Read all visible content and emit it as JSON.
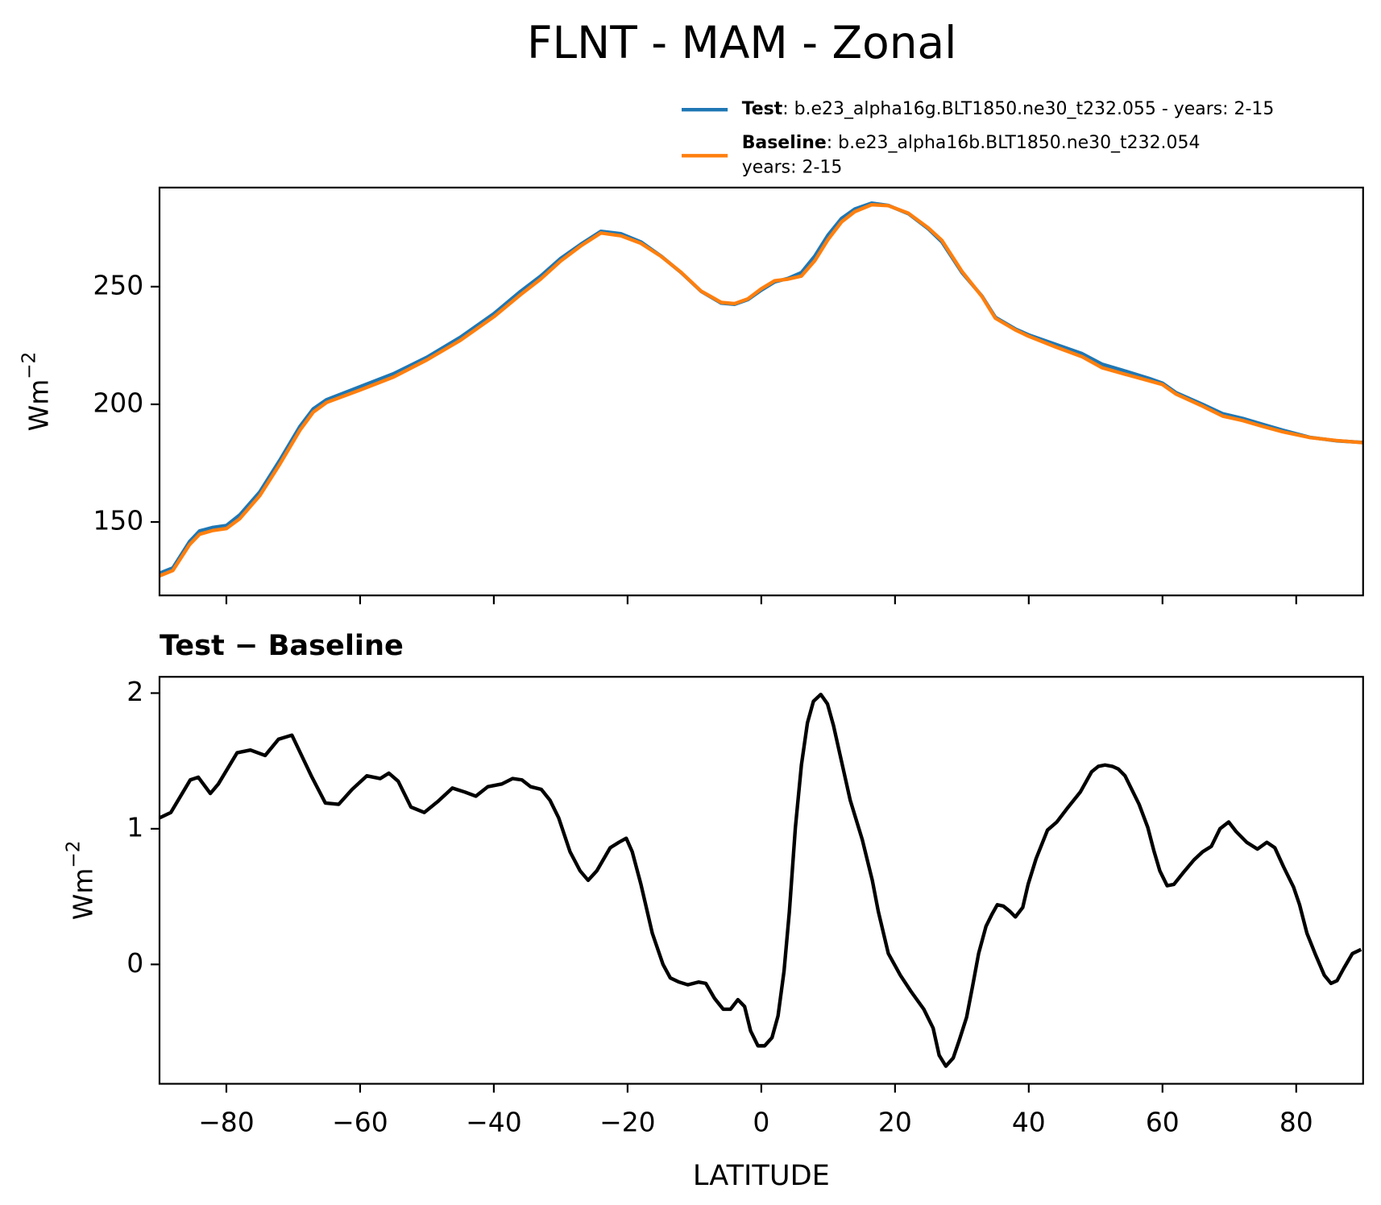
{
  "chart_data": [
    {
      "type": "line",
      "title": "FLNT - MAM - Zonal",
      "ylabel": "Wm",
      "ylabel_sup": "−2",
      "x": [
        -90,
        -88,
        -85.5,
        -84,
        -82,
        -80,
        -78,
        -75,
        -72,
        -69,
        -67,
        -65,
        -60,
        -55,
        -50,
        -45,
        -40,
        -36,
        -33,
        -30,
        -27,
        -24,
        -21,
        -18,
        -15,
        -12,
        -9,
        -6,
        -4,
        -2,
        0,
        2,
        4,
        6,
        8,
        10,
        12,
        14,
        16.5,
        19,
        22,
        25,
        27,
        30,
        33,
        35,
        38,
        40,
        44,
        48,
        51,
        54,
        58,
        60,
        62,
        66,
        69,
        72,
        75,
        78,
        82,
        86,
        90
      ],
      "series": [
        {
          "name": "Test",
          "label": ": b.e23_alpha16g.BLT1850.ne30_t232.055 - years: 2-15",
          "color": "#1f77b4",
          "values": [
            128.2,
            130.5,
            141.7,
            146.2,
            147.7,
            148.5,
            153,
            162.8,
            176.3,
            190.6,
            198.1,
            202,
            207.5,
            213,
            220,
            228.5,
            238.5,
            248,
            254.5,
            262,
            268,
            273.5,
            272.5,
            269,
            263,
            256,
            248,
            243,
            242.5,
            244.5,
            248.5,
            252,
            253.5,
            256,
            263,
            272,
            279,
            283,
            285.5,
            284.5,
            281,
            274.5,
            269,
            256,
            246,
            237,
            232,
            229.5,
            225.5,
            221.5,
            217,
            214.5,
            211,
            209,
            205,
            200,
            196,
            194,
            191.5,
            189,
            186,
            184.5,
            183.8
          ]
        },
        {
          "name": "Baseline",
          "label": [
            ": b.e23_alpha16b.BLT1850.ne30_t232.054",
            "years: 2-15"
          ],
          "color": "#ff7f0e",
          "values": [
            127.1,
            129.4,
            140.4,
            144.8,
            146.4,
            147.2,
            151.4,
            161.2,
            174.6,
            189,
            196.7,
            200.8,
            206.1,
            211.6,
            218.9,
            227.2,
            237.2,
            246.6,
            253.2,
            260.9,
            267.3,
            272.8,
            271.6,
            268.4,
            262.9,
            256.1,
            248.1,
            243.3,
            242.8,
            244.8,
            249.1,
            252.5,
            253.2,
            254.5,
            261,
            270.1,
            277.5,
            281.9,
            284.8,
            284.4,
            281.2,
            274.9,
            269.7,
            256.5,
            245.8,
            236.6,
            231.6,
            228.9,
            224.4,
            220.2,
            215.5,
            213.1,
            210,
            208.4,
            204.4,
            199.2,
            195,
            193.1,
            190.6,
            188.3,
            185.9,
            184.6,
            183.7
          ]
        }
      ],
      "xlim": [
        -90,
        90
      ],
      "xticks": [
        -80,
        -60,
        -40,
        -20,
        0,
        20,
        40,
        60,
        80
      ],
      "ylim": [
        118.8,
        292.1
      ],
      "yticks": [
        150,
        200,
        250
      ]
    },
    {
      "type": "line",
      "title": "Test − Baseline",
      "ylabel": "Wm",
      "ylabel_sup": "−2",
      "xlabel": "LATITUDE",
      "color": "#000000",
      "x": [
        -90,
        -88.3,
        -85.4,
        -84.2,
        -82.4,
        -81.2,
        -78.4,
        -76.4,
        -74.2,
        -72.2,
        -70.2,
        -67.3,
        -65.2,
        -63.2,
        -61.2,
        -59,
        -57,
        -55.7,
        -54.3,
        -52.4,
        -50.4,
        -48.4,
        -46.2,
        -44.3,
        -42.7,
        -40.9,
        -38.8,
        -37.2,
        -35.8,
        -34.5,
        -32.9,
        -31.6,
        -30.3,
        -28.6,
        -27.1,
        -25.9,
        -24.6,
        -22.6,
        -21.3,
        -20.2,
        -19.3,
        -18,
        -16.3,
        -14.7,
        -13.6,
        -12.3,
        -11,
        -9.4,
        -8.3,
        -7,
        -5.7,
        -4.6,
        -3.5,
        -2.5,
        -1.6,
        -0.5,
        0.5,
        1.6,
        2.5,
        3.4,
        4.2,
        5.1,
        6,
        6.9,
        7.8,
        8.9,
        9.9,
        10.8,
        11.8,
        13.3,
        15.1,
        16.6,
        17.5,
        19,
        20.8,
        22.4,
        24.3,
        25.7,
        26.6,
        27.6,
        28.7,
        29.6,
        30.7,
        31.6,
        32.5,
        33.6,
        34.5,
        35.3,
        36.2,
        37.2,
        38,
        39.1,
        39.9,
        41.1,
        42.8,
        44.2,
        45.9,
        47.7,
        49.4,
        50.4,
        51.4,
        52.5,
        53.4,
        54.4,
        55.4,
        56.5,
        57.8,
        58.7,
        59.6,
        60.7,
        61.7,
        63,
        64.7,
        66,
        67.3,
        68.6,
        69.9,
        71,
        72.6,
        74.2,
        75.6,
        76.8,
        78.1,
        79.6,
        80.5,
        81.6,
        82.9,
        84.2,
        85.2,
        86.1,
        87.1,
        88.4,
        89.7
      ],
      "values": [
        1.08,
        1.12,
        1.36,
        1.38,
        1.26,
        1.33,
        1.56,
        1.58,
        1.54,
        1.66,
        1.69,
        1.39,
        1.19,
        1.18,
        1.29,
        1.39,
        1.37,
        1.41,
        1.35,
        1.16,
        1.12,
        1.2,
        1.3,
        1.27,
        1.24,
        1.31,
        1.33,
        1.37,
        1.36,
        1.31,
        1.29,
        1.21,
        1.08,
        0.83,
        0.69,
        0.62,
        0.69,
        0.86,
        0.9,
        0.93,
        0.83,
        0.59,
        0.23,
        0,
        -0.1,
        -0.13,
        -0.15,
        -0.13,
        -0.14,
        -0.25,
        -0.33,
        -0.33,
        -0.26,
        -0.31,
        -0.49,
        -0.6,
        -0.6,
        -0.54,
        -0.38,
        -0.05,
        0.39,
        1.01,
        1.47,
        1.78,
        1.94,
        1.99,
        1.92,
        1.76,
        1.54,
        1.21,
        0.92,
        0.62,
        0.39,
        0.08,
        -0.08,
        -0.2,
        -0.33,
        -0.47,
        -0.67,
        -0.75,
        -0.69,
        -0.56,
        -0.39,
        -0.16,
        0.08,
        0.28,
        0.37,
        0.44,
        0.43,
        0.39,
        0.35,
        0.42,
        0.59,
        0.78,
        0.99,
        1.05,
        1.16,
        1.27,
        1.42,
        1.46,
        1.47,
        1.46,
        1.44,
        1.39,
        1.29,
        1.18,
        1.01,
        0.84,
        0.69,
        0.58,
        0.59,
        0.67,
        0.77,
        0.83,
        0.87,
        1.0,
        1.05,
        0.98,
        0.9,
        0.85,
        0.9,
        0.86,
        0.72,
        0.57,
        0.44,
        0.23,
        0.07,
        -0.08,
        -0.14,
        -0.12,
        -0.03,
        0.08,
        0.11
      ],
      "xlim": [
        -90,
        90
      ],
      "xticks": [
        {
          "value": -80,
          "label": "−80"
        },
        {
          "value": -60,
          "label": "−60"
        },
        {
          "value": -40,
          "label": "−40"
        },
        {
          "value": -20,
          "label": "−20"
        },
        0,
        20,
        40,
        60,
        80
      ],
      "ylim": [
        -0.88,
        2.12
      ],
      "yticks": [
        0,
        1,
        2
      ]
    }
  ]
}
